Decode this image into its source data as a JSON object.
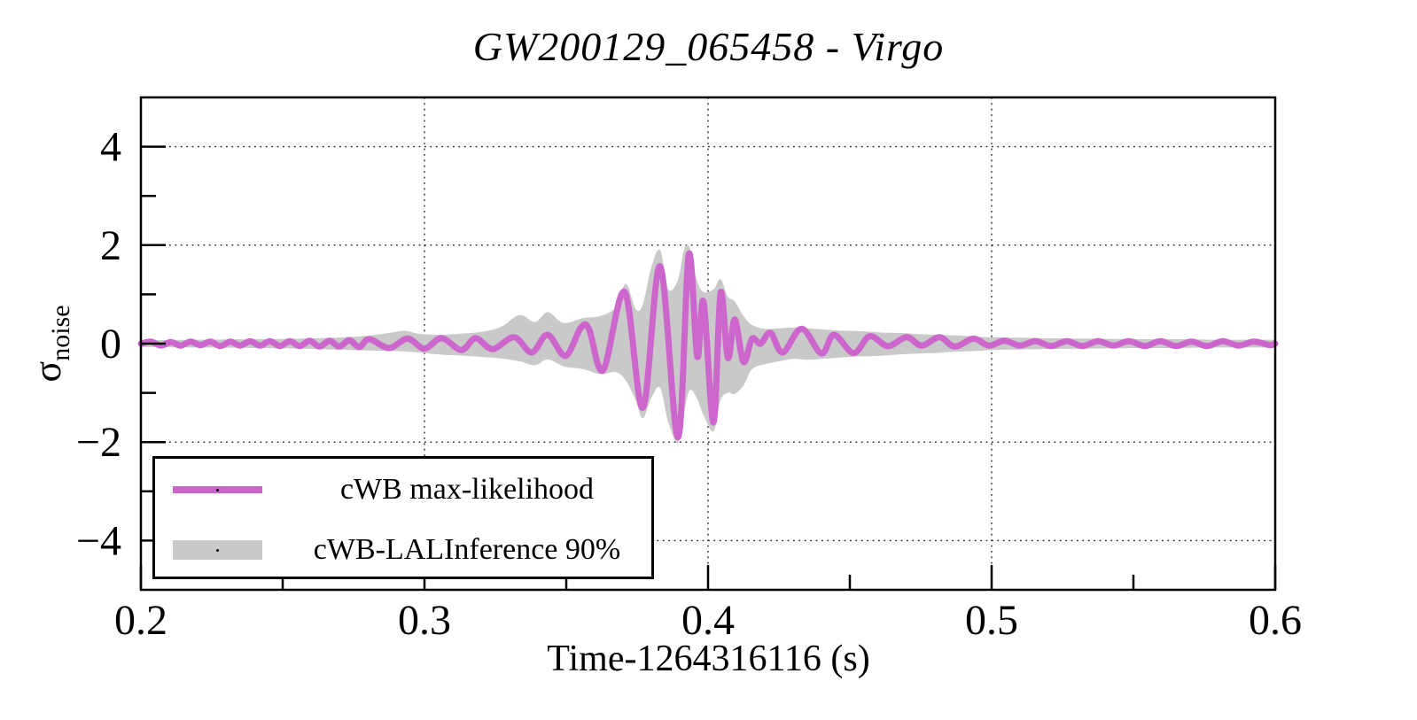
{
  "chart_data": {
    "type": "line",
    "title": "GW200129_065458 - Virgo",
    "xlabel": "Time-1264316116 (s)",
    "ylabel": {
      "symbol": "σ",
      "subscript": "noise"
    },
    "xlim": [
      0.2,
      0.6
    ],
    "ylim": [
      -5,
      5
    ],
    "x_major_ticks": [
      0.2,
      0.3,
      0.4,
      0.5,
      0.6
    ],
    "x_minor_ticks": [
      0.25,
      0.35,
      0.45,
      0.55
    ],
    "x_tick_labels": [
      "0.2",
      "0.3",
      "0.4",
      "0.5",
      "0.6"
    ],
    "y_major_ticks": [
      -4,
      -2,
      0,
      2,
      4
    ],
    "y_minor_ticks": [
      -3,
      -1,
      1,
      3
    ],
    "y_tick_labels": [
      "−4",
      "−2",
      "0",
      "2",
      "4"
    ],
    "grid": {
      "style": "dotted",
      "on_major_ticks": true
    },
    "colors": {
      "line": "#CC66CC",
      "band": "#C9C9C9",
      "frame": "#000000",
      "grid": "#222222"
    },
    "legend": {
      "position": "bottom-left",
      "entries": [
        {
          "label": "cWB max-likelihood",
          "type": "line",
          "color": "#CC66CC"
        },
        {
          "label": "cWB-LALInference 90%",
          "type": "band",
          "color": "#C9C9C9"
        }
      ]
    },
    "series": [
      {
        "name": "cWB max-likelihood",
        "type": "line",
        "color": "#CC66CC",
        "points": [
          [
            0.2,
            0.0
          ],
          [
            0.2035,
            0.04
          ],
          [
            0.207,
            -0.04
          ],
          [
            0.2105,
            0.03
          ],
          [
            0.214,
            -0.04
          ],
          [
            0.2175,
            0.04
          ],
          [
            0.221,
            -0.03
          ],
          [
            0.2245,
            0.04
          ],
          [
            0.228,
            -0.05
          ],
          [
            0.2315,
            0.04
          ],
          [
            0.235,
            -0.04
          ],
          [
            0.2385,
            0.05
          ],
          [
            0.242,
            -0.04
          ],
          [
            0.2455,
            0.05
          ],
          [
            0.249,
            -0.05
          ],
          [
            0.2525,
            0.05
          ],
          [
            0.256,
            -0.05
          ],
          [
            0.2595,
            0.06
          ],
          [
            0.263,
            -0.06
          ],
          [
            0.2665,
            0.06
          ],
          [
            0.27,
            -0.06
          ],
          [
            0.2735,
            0.07
          ],
          [
            0.277,
            -0.07
          ],
          [
            0.2805,
            0.09
          ],
          [
            0.2875,
            -0.09
          ],
          [
            0.294,
            0.1
          ],
          [
            0.3,
            -0.1
          ],
          [
            0.306,
            0.11
          ],
          [
            0.313,
            -0.13
          ],
          [
            0.318,
            0.11
          ],
          [
            0.324,
            -0.11
          ],
          [
            0.3316,
            0.13
          ],
          [
            0.3378,
            -0.18
          ],
          [
            0.3434,
            0.18
          ],
          [
            0.3497,
            -0.25
          ],
          [
            0.355,
            0.31
          ],
          [
            0.358,
            0.3
          ],
          [
            0.363,
            -0.54
          ],
          [
            0.3706,
            1.05
          ],
          [
            0.377,
            -1.3
          ],
          [
            0.3831,
            1.57
          ],
          [
            0.3894,
            -1.9
          ],
          [
            0.3932,
            1.81
          ],
          [
            0.3962,
            -0.26
          ],
          [
            0.3984,
            0.85
          ],
          [
            0.4019,
            -1.6
          ],
          [
            0.4044,
            1.03
          ],
          [
            0.407,
            -0.29
          ],
          [
            0.4094,
            0.49
          ],
          [
            0.4125,
            -0.37
          ],
          [
            0.4155,
            0.1
          ],
          [
            0.4185,
            0.0
          ],
          [
            0.422,
            0.22
          ],
          [
            0.4263,
            -0.18
          ],
          [
            0.433,
            0.3
          ],
          [
            0.44,
            -0.2
          ],
          [
            0.4444,
            0.18
          ],
          [
            0.4513,
            -0.19
          ],
          [
            0.457,
            0.15
          ],
          [
            0.4634,
            -0.05
          ],
          [
            0.47,
            0.13
          ],
          [
            0.4753,
            -0.04
          ],
          [
            0.4816,
            0.13
          ],
          [
            0.487,
            -0.06
          ],
          [
            0.4936,
            0.1
          ],
          [
            0.499,
            -0.04
          ],
          [
            0.5045,
            0.06
          ],
          [
            0.51,
            -0.04
          ],
          [
            0.5155,
            0.05
          ],
          [
            0.521,
            -0.05
          ],
          [
            0.5265,
            0.05
          ],
          [
            0.532,
            -0.05
          ],
          [
            0.5375,
            0.05
          ],
          [
            0.543,
            -0.04
          ],
          [
            0.5485,
            0.05
          ],
          [
            0.554,
            -0.05
          ],
          [
            0.5595,
            0.05
          ],
          [
            0.565,
            -0.05
          ],
          [
            0.5705,
            0.04
          ],
          [
            0.576,
            -0.05
          ],
          [
            0.5815,
            0.05
          ],
          [
            0.587,
            -0.04
          ],
          [
            0.5925,
            0.04
          ],
          [
            0.598,
            -0.03
          ],
          [
            0.6,
            0.0
          ]
        ]
      },
      {
        "name": "cWB-LALInference 90%",
        "type": "band",
        "color": "#C9C9C9",
        "points": [
          [
            0.2,
            -0.07,
            0.07
          ],
          [
            0.22,
            -0.08,
            0.08
          ],
          [
            0.24,
            -0.09,
            0.09
          ],
          [
            0.255,
            -0.1,
            0.1
          ],
          [
            0.268,
            -0.12,
            0.12
          ],
          [
            0.28,
            -0.14,
            0.16
          ],
          [
            0.288,
            -0.15,
            0.22
          ],
          [
            0.293,
            -0.16,
            0.26
          ],
          [
            0.298,
            -0.18,
            0.2
          ],
          [
            0.305,
            -0.22,
            0.18
          ],
          [
            0.312,
            -0.24,
            0.2
          ],
          [
            0.32,
            -0.27,
            0.24
          ],
          [
            0.327,
            -0.3,
            0.34
          ],
          [
            0.3335,
            -0.36,
            0.58
          ],
          [
            0.339,
            -0.44,
            0.44
          ],
          [
            0.3435,
            -0.32,
            0.64
          ],
          [
            0.349,
            -0.46,
            0.42
          ],
          [
            0.356,
            -0.52,
            0.52
          ],
          [
            0.362,
            -0.62,
            0.56
          ],
          [
            0.3675,
            -0.58,
            0.74
          ],
          [
            0.371,
            -0.75,
            1.22
          ],
          [
            0.3745,
            -1.15,
            0.7
          ],
          [
            0.377,
            -1.52,
            0.8
          ],
          [
            0.38,
            -1.1,
            1.55
          ],
          [
            0.3831,
            -0.9,
            1.9
          ],
          [
            0.386,
            -1.6,
            1.1
          ],
          [
            0.3894,
            -2.02,
            1.3
          ],
          [
            0.3915,
            -1.4,
            1.9
          ],
          [
            0.3935,
            -0.95,
            1.95
          ],
          [
            0.396,
            -1.1,
            1.3
          ],
          [
            0.3984,
            -1.45,
            1.05
          ],
          [
            0.4019,
            -1.78,
            1.1
          ],
          [
            0.4044,
            -1.15,
            1.31
          ],
          [
            0.407,
            -1.0,
            0.95
          ],
          [
            0.4094,
            -1.02,
            0.86
          ],
          [
            0.4125,
            -0.85,
            0.56
          ],
          [
            0.4155,
            -0.52,
            0.38
          ],
          [
            0.42,
            -0.42,
            0.3
          ],
          [
            0.425,
            -0.36,
            0.31
          ],
          [
            0.43,
            -0.31,
            0.33
          ],
          [
            0.435,
            -0.33,
            0.31
          ],
          [
            0.44,
            -0.31,
            0.29
          ],
          [
            0.445,
            -0.29,
            0.27
          ],
          [
            0.45,
            -0.27,
            0.26
          ],
          [
            0.455,
            -0.26,
            0.25
          ],
          [
            0.46,
            -0.25,
            0.23
          ],
          [
            0.465,
            -0.23,
            0.22
          ],
          [
            0.47,
            -0.21,
            0.21
          ],
          [
            0.475,
            -0.2,
            0.19
          ],
          [
            0.48,
            -0.19,
            0.18
          ],
          [
            0.485,
            -0.17,
            0.17
          ],
          [
            0.49,
            -0.16,
            0.16
          ],
          [
            0.495,
            -0.15,
            0.14
          ],
          [
            0.5,
            -0.13,
            0.13
          ],
          [
            0.51,
            -0.12,
            0.12
          ],
          [
            0.52,
            -0.11,
            0.11
          ],
          [
            0.535,
            -0.1,
            0.1
          ],
          [
            0.55,
            -0.09,
            0.09
          ],
          [
            0.565,
            -0.09,
            0.09
          ],
          [
            0.58,
            -0.08,
            0.08
          ],
          [
            0.6,
            -0.08,
            0.08
          ]
        ]
      }
    ]
  }
}
